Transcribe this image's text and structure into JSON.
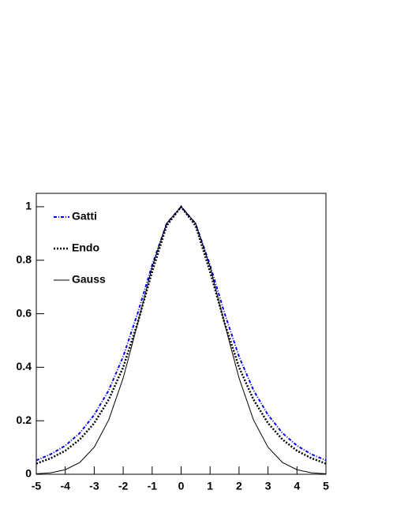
{
  "chart_data": {
    "type": "line",
    "x": [
      -5,
      -4.5,
      -4,
      -3.5,
      -3,
      -2.5,
      -2,
      -1.5,
      -1,
      -0.5,
      0,
      0.5,
      1,
      1.5,
      2,
      2.5,
      3,
      3.5,
      4,
      4.5,
      5
    ],
    "series": [
      {
        "name": "Gatti",
        "color": "#0000ff",
        "line_style": "dash-dot",
        "values": [
          0.052,
          0.075,
          0.107,
          0.154,
          0.222,
          0.314,
          0.44,
          0.602,
          0.782,
          0.937,
          1,
          0.937,
          0.782,
          0.602,
          0.44,
          0.314,
          0.222,
          0.154,
          0.107,
          0.075,
          0.052
        ]
      },
      {
        "name": "Endo",
        "color": "#000000",
        "line_style": "dotted",
        "values": [
          0.04,
          0.06,
          0.088,
          0.13,
          0.191,
          0.279,
          0.4,
          0.566,
          0.757,
          0.929,
          1,
          0.929,
          0.757,
          0.566,
          0.4,
          0.279,
          0.191,
          0.13,
          0.088,
          0.06,
          0.04
        ]
      },
      {
        "name": "Gauss",
        "color": "#000000",
        "line_style": "solid",
        "values": [
          0.0017,
          0.0057,
          0.017,
          0.044,
          0.101,
          0.203,
          0.36,
          0.563,
          0.775,
          0.938,
          1,
          0.938,
          0.775,
          0.563,
          0.36,
          0.203,
          0.101,
          0.044,
          0.017,
          0.0057,
          0.0017
        ]
      }
    ],
    "xlim": [
      -5,
      5
    ],
    "xticks": [
      -5,
      -4,
      -3,
      -2,
      -1,
      0,
      1,
      2,
      3,
      4,
      5
    ],
    "ylim": [
      0,
      1.05
    ],
    "yticks": [
      0,
      0.2,
      0.4,
      0.6,
      0.8,
      1
    ],
    "legend": "top-left"
  }
}
